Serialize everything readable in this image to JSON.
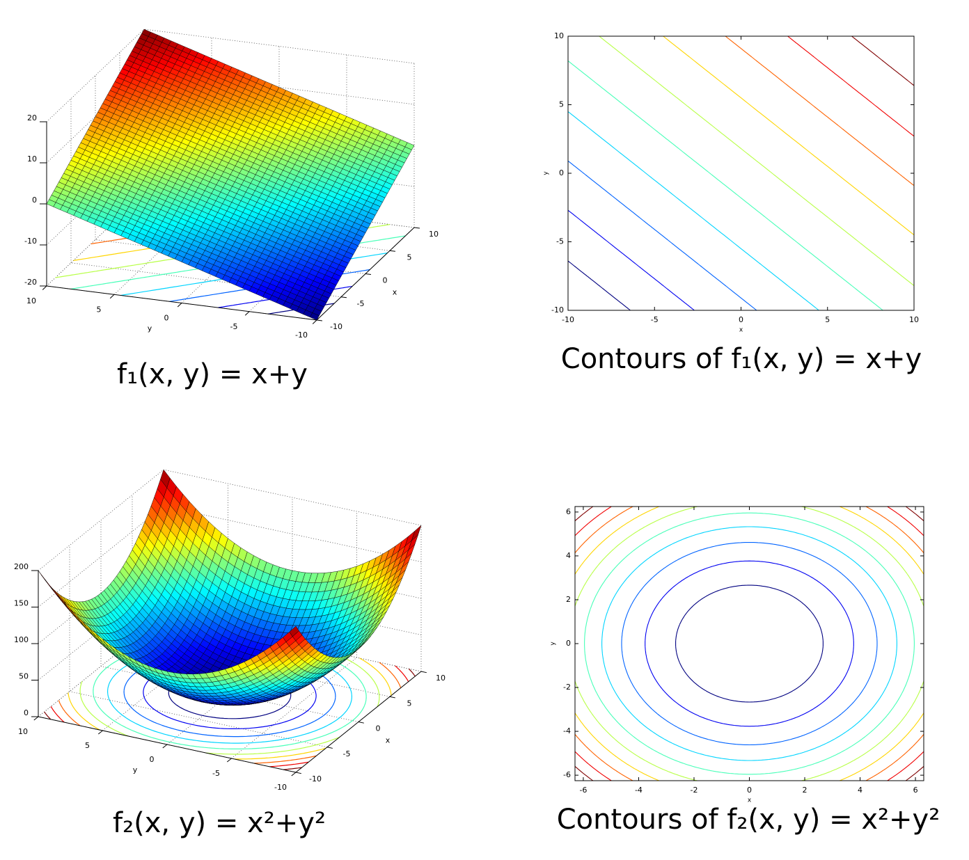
{
  "chart_data": [
    {
      "type": "surface",
      "caption": "f₁(x, y) = x+y",
      "terms": [
        {
          "coef": 1,
          "xpow": 1,
          "ypow": 0
        },
        {
          "coef": 1,
          "xpow": 0,
          "ypow": 1
        }
      ],
      "xlabel": "x",
      "ylabel": "y",
      "xlim": [
        -10,
        10
      ],
      "ylim": [
        -10,
        10
      ],
      "zlim": [
        -20,
        20
      ],
      "xticks": [
        -10,
        -5,
        0,
        5,
        10
      ],
      "yticks": [
        -10,
        -5,
        0,
        5,
        10
      ],
      "zticks": [
        -20,
        -10,
        0,
        10,
        20
      ],
      "levels": [
        -16.4,
        -12.7,
        -9.1,
        -5.5,
        -1.8,
        1.8,
        5.5,
        9.1,
        12.7,
        16.4
      ],
      "colormap": "jet",
      "grid": true
    },
    {
      "type": "contour",
      "caption": "Contours of f₁(x, y) = x+y",
      "terms": [
        {
          "coef": 1,
          "xpow": 1,
          "ypow": 0
        },
        {
          "coef": 1,
          "xpow": 0,
          "ypow": 1
        }
      ],
      "xlabel": "x",
      "ylabel": "y",
      "xlim": [
        -10,
        10
      ],
      "ylim": [
        -10,
        10
      ],
      "xticks": [
        -10,
        -5,
        0,
        5,
        10
      ],
      "yticks": [
        -10,
        -5,
        0,
        5,
        10
      ],
      "levels": [
        -16.4,
        -12.7,
        -9.1,
        -5.5,
        -1.8,
        1.8,
        5.5,
        9.1,
        12.7,
        16.4
      ],
      "colormap": "jet"
    },
    {
      "type": "surface",
      "caption": "f₂(x, y) = x²+y²",
      "terms": [
        {
          "coef": 1,
          "xpow": 2,
          "ypow": 0
        },
        {
          "coef": 1,
          "xpow": 0,
          "ypow": 2
        }
      ],
      "xlabel": "x",
      "ylabel": "y",
      "xlim": [
        -10,
        10
      ],
      "ylim": [
        -10,
        10
      ],
      "zlim": [
        0,
        200
      ],
      "xticks": [
        -10,
        -5,
        0,
        5,
        10
      ],
      "yticks": [
        -10,
        -5,
        0,
        5,
        10
      ],
      "zticks": [
        0,
        50,
        100,
        150,
        200
      ],
      "levels": [
        18.2,
        36.4,
        54.5,
        72.7,
        90.9,
        109.1,
        127.3,
        145.5,
        163.6,
        181.8
      ],
      "colormap": "jet",
      "grid": true
    },
    {
      "type": "contour",
      "caption": "Contours of f₂(x, y) = x²+y²",
      "terms": [
        {
          "coef": 1,
          "xpow": 2,
          "ypow": 0
        },
        {
          "coef": 1,
          "xpow": 0,
          "ypow": 2
        }
      ],
      "xlabel": "x",
      "ylabel": "y",
      "xlim": [
        -6.3,
        6.3
      ],
      "ylim": [
        -6.25,
        6.25
      ],
      "xticks": [
        -6,
        -4,
        -2,
        0,
        2,
        4,
        6
      ],
      "yticks": [
        -6,
        -4,
        -2,
        0,
        2,
        4,
        6
      ],
      "levels": [
        7.1,
        14.2,
        21.3,
        28.4,
        35.5,
        42.6,
        49.7,
        56.8,
        63.9,
        71.0
      ],
      "colormap": "jet"
    }
  ]
}
